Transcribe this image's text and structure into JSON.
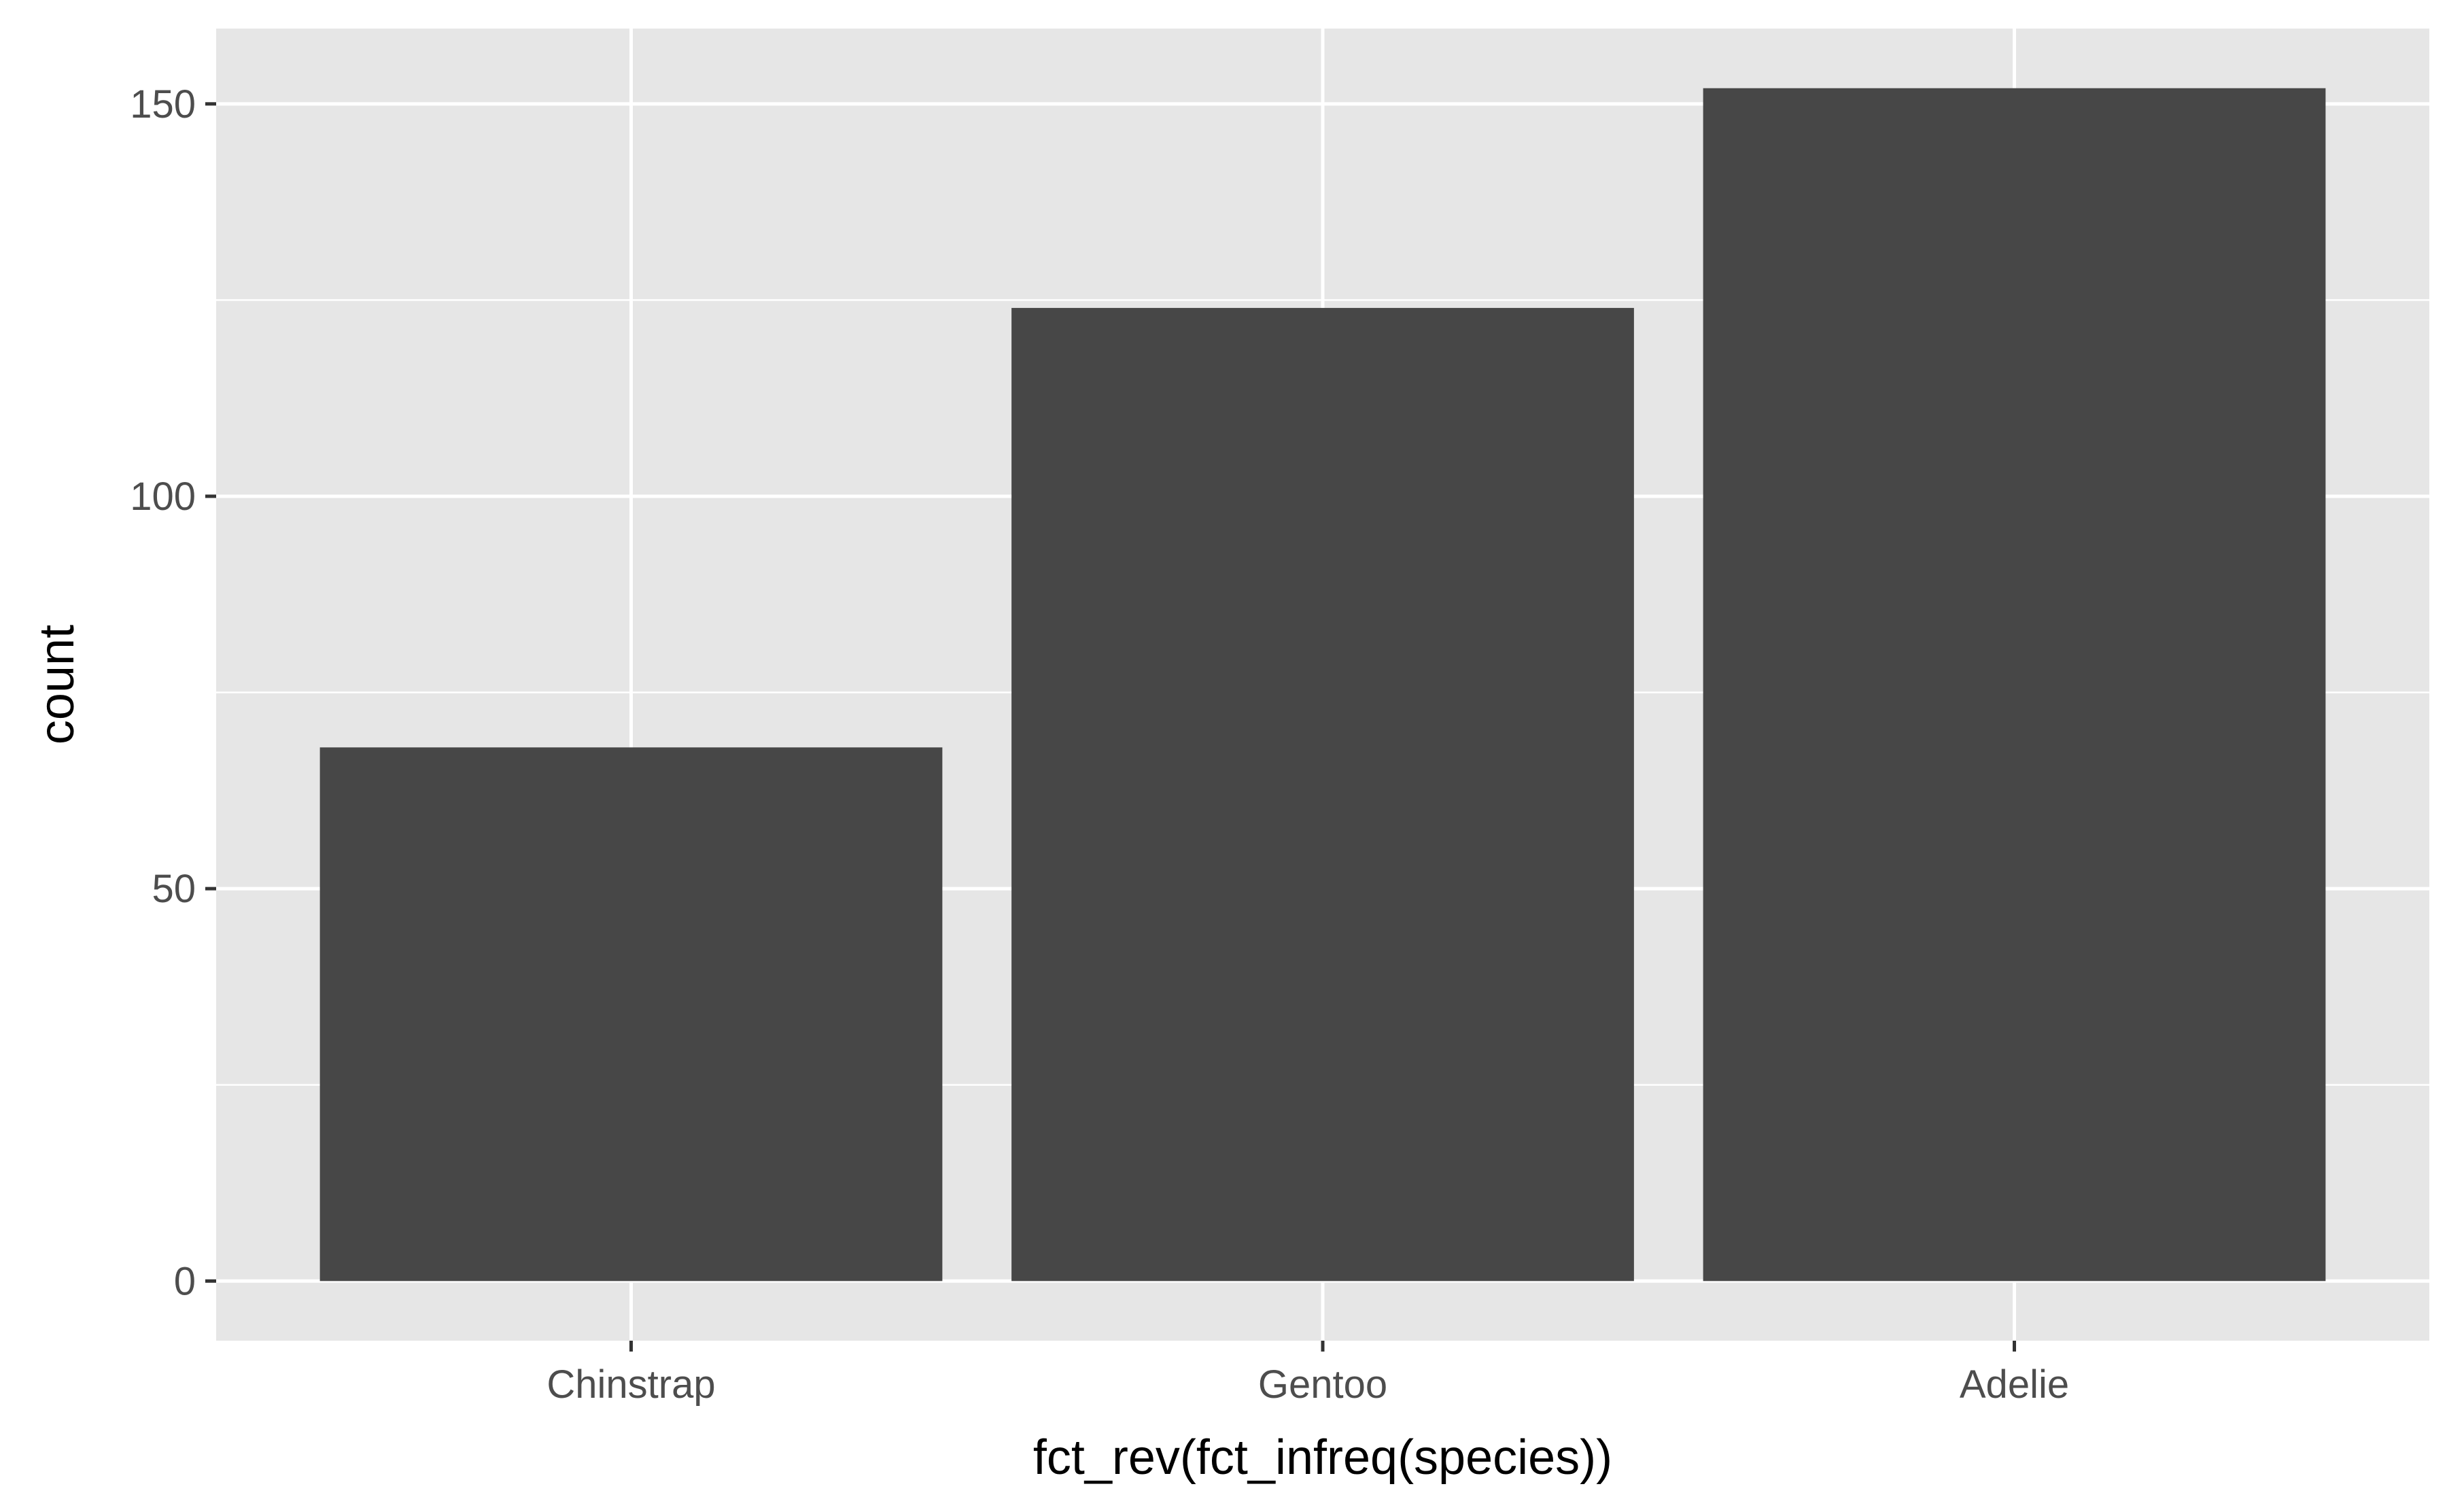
{
  "chart_data": {
    "type": "bar",
    "categories": [
      "Chinstrap",
      "Gentoo",
      "Adelie"
    ],
    "values": [
      68,
      124,
      152
    ],
    "title": "",
    "xlabel": "fct_rev(fct_infreq(species))",
    "ylabel": "count",
    "ylim": [
      -7.6,
      159.6
    ],
    "y_ticks": [
      0,
      50,
      100,
      150
    ],
    "y_tick_labels": [
      "0",
      "50",
      "100",
      "150"
    ],
    "y_minor_ticks": [
      25,
      75,
      125
    ],
    "grid": true,
    "legend": "none",
    "colors": {
      "bar": "#474747",
      "panel_background": "#e6e6e6",
      "grid": "#ffffff",
      "tick": "#333333",
      "tick_label": "#4d4d4d",
      "axis_title": "#000000"
    }
  }
}
